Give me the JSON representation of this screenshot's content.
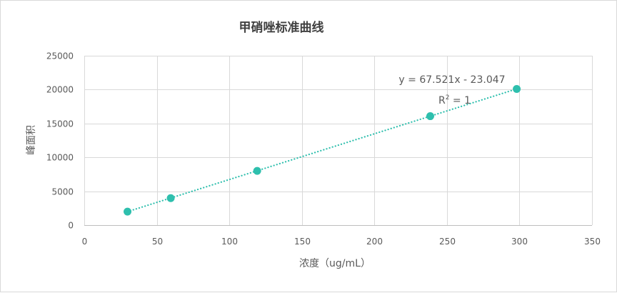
{
  "chart_data": {
    "type": "scatter",
    "title": "甲硝唑标准曲线",
    "xlabel": "浓度（ug/mL）",
    "ylabel": "峰面积",
    "xlim": [
      0,
      350
    ],
    "ylim": [
      0,
      25000
    ],
    "x_ticks": [
      0,
      50,
      100,
      150,
      200,
      250,
      300,
      350
    ],
    "y_ticks": [
      0,
      5000,
      10000,
      15000,
      20000,
      25000
    ],
    "grid": true,
    "series": [
      {
        "x": [
          29.8,
          59.6,
          119.2,
          238.5,
          298.1
        ],
        "y": [
          1990,
          3980,
          8000,
          16080,
          20100
        ]
      }
    ],
    "trendline": {
      "type": "linear",
      "slope": 67.521,
      "intercept": -23.047,
      "equation_prefix": "y = 67.521x - 23.047",
      "r2_base": "R",
      "r2_exp": "2",
      "r2_rest": " = 1"
    },
    "colors": {
      "marker": "#2ebfad",
      "trendline": "#2ebfad"
    }
  }
}
